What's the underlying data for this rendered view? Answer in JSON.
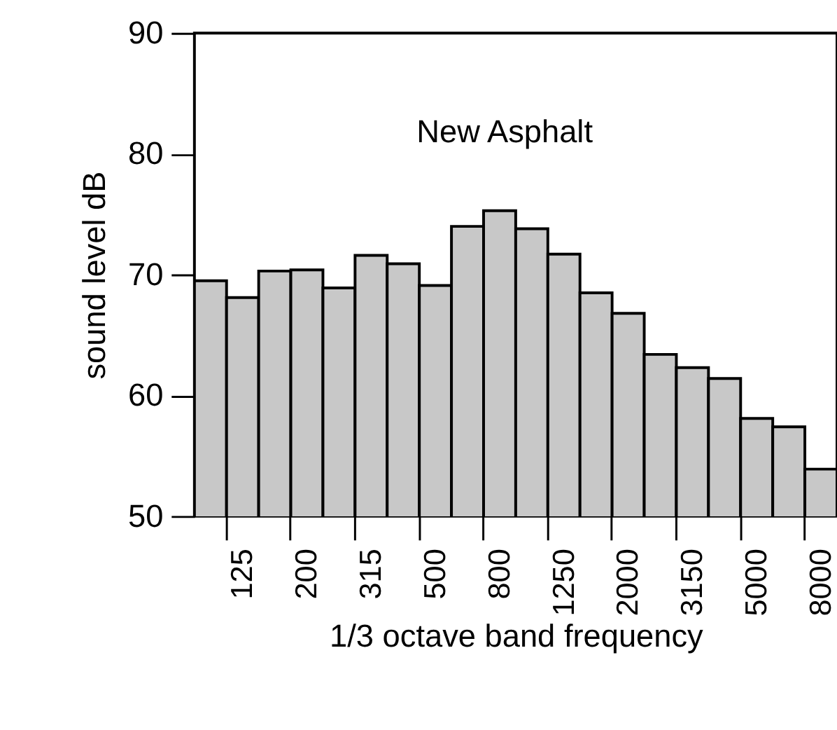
{
  "chart_data": {
    "type": "bar",
    "xlabel": "1/3  octave band frequency",
    "ylabel": "sound level dB",
    "annotations": [
      "New Asphalt"
    ],
    "categories": [
      null,
      "125",
      null,
      "200",
      null,
      "315",
      null,
      "500",
      null,
      "800",
      null,
      "1250",
      null,
      "2000",
      null,
      "3150",
      null,
      "5000",
      null,
      "8000"
    ],
    "values": [
      69.5,
      68.1,
      70.3,
      70.4,
      68.9,
      71.6,
      70.9,
      69.1,
      74.0,
      75.3,
      73.8,
      71.7,
      68.5,
      66.8,
      63.4,
      62.3,
      61.4,
      58.1,
      57.4,
      53.9
    ],
    "color": "#c8c8c8",
    "ylim": [
      50,
      90
    ],
    "yticks": [
      50,
      60,
      70,
      80,
      90
    ],
    "grid": false
  }
}
